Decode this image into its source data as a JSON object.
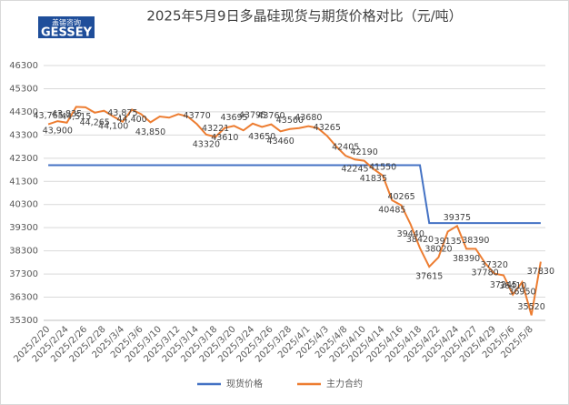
{
  "logo": {
    "name": "盖锡咨询",
    "brand": "GESSEY"
  },
  "chart_data": {
    "type": "line",
    "title": "2025年5月9日多晶硅现货与期货价格对比（元/吨）",
    "categories": [
      "2025/2/20",
      null,
      "2025/2/24",
      null,
      "2025/2/26",
      null,
      "2025/2/28",
      null,
      "2025/3/4",
      null,
      "2025/3/6",
      null,
      "2025/3/10",
      null,
      "2025/3/12",
      null,
      "2025/3/14",
      null,
      "2025/3/18",
      null,
      "2025/3/20",
      null,
      "2025/3/24",
      null,
      "2025/3/26",
      null,
      "2025/3/28",
      null,
      "2025/4/1",
      null,
      "2025/4/3",
      null,
      "2025/4/8",
      null,
      "2025/4/10",
      null,
      "2025/4/14",
      null,
      "2025/4/16",
      null,
      "2025/4/18",
      null,
      "2025/4/22",
      null,
      "2025/4/24",
      null,
      "2025/4/27",
      null,
      "2025/4/29",
      null,
      "2025/5/6",
      null,
      "2025/5/8",
      null
    ],
    "series": [
      {
        "name": "现货价格",
        "color": "#4472c4",
        "values": [
          42000,
          42000,
          42000,
          42000,
          42000,
          42000,
          42000,
          42000,
          42000,
          42000,
          42000,
          42000,
          42000,
          42000,
          42000,
          42000,
          42000,
          42000,
          42000,
          42000,
          42000,
          42000,
          42000,
          42000,
          42000,
          42000,
          42000,
          42000,
          42000,
          42000,
          42000,
          42000,
          42000,
          42000,
          42000,
          42000,
          42000,
          42000,
          42000,
          42000,
          42000,
          39500,
          39500,
          39500,
          39500,
          39500,
          39500,
          39500,
          39500,
          39500,
          39500,
          39500,
          39500,
          39500
        ]
      },
      {
        "name": "主力合约",
        "color": "#ed7d31",
        "values": [
          43765,
          43900,
          43835,
          44515,
          44500,
          44265,
          44350,
          44100,
          43875,
          44400,
          44200,
          43850,
          44100,
          44050,
          44200,
          44100,
          43770,
          43320,
          43221,
          43610,
          43695,
          43500,
          43795,
          43650,
          43760,
          43460,
          43560,
          43600,
          43680,
          43600,
          43265,
          42800,
          42405,
          42245,
          42190,
          41835,
          41550,
          40485,
          40265,
          39440,
          38420,
          37615,
          38020,
          39135,
          39375,
          38390,
          38390,
          37780,
          37320,
          37245,
          36410,
          36950,
          35520,
          37830
        ],
        "value_labels": [
          "43,765",
          "43,900",
          "43,835",
          "44,515",
          null,
          "44,265",
          null,
          "44,100",
          "43,875",
          "44,400",
          null,
          "43,850",
          null,
          null,
          null,
          null,
          "43770",
          "43320",
          "43221",
          "43610",
          "43695",
          null,
          "43795",
          "43650",
          "43760",
          "43460",
          "43560",
          null,
          "43680",
          null,
          "43265",
          null,
          "42405",
          "42245",
          "42190",
          "41835",
          "41550",
          "40485",
          "40265",
          "39440",
          "38420",
          "37615",
          "38020",
          "39135",
          "39375",
          "38390",
          "38390",
          "37780",
          "37320",
          "37245",
          "36410",
          "36950",
          "35520",
          "37830"
        ]
      }
    ],
    "ylim": [
      35300,
      46300
    ],
    "yticks": [
      35300,
      36300,
      37300,
      38300,
      39300,
      40300,
      41300,
      42300,
      43300,
      44300,
      45300,
      46300
    ],
    "grid": true,
    "legend": "bottom"
  }
}
